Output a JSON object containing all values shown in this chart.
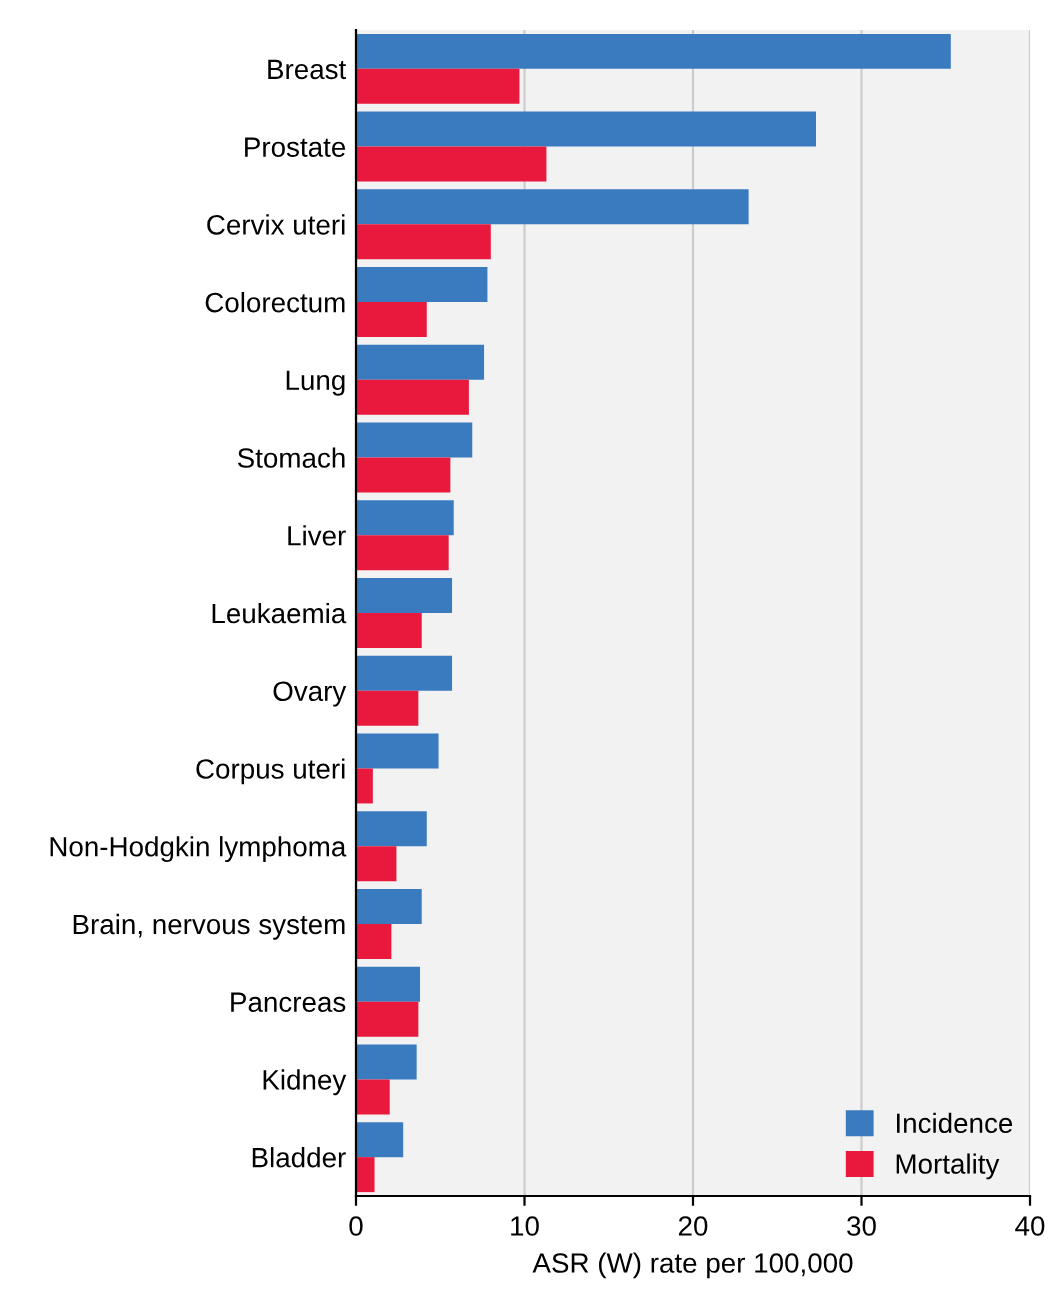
{
  "chart_data": {
    "type": "bar",
    "orientation": "horizontal",
    "xlabel": "ASR (W) rate per 100,000",
    "categories": [
      "Breast",
      "Prostate",
      "Cervix uteri",
      "Colorectum",
      "Lung",
      "Stomach",
      "Liver",
      "Leukaemia",
      "Ovary",
      "Corpus uteri",
      "Non-Hodgkin lymphoma",
      "Brain, nervous system",
      "Pancreas",
      "Kidney",
      "Bladder"
    ],
    "series": [
      {
        "name": "Incidence",
        "color": "#3a7bbf",
        "values": [
          35.3,
          27.3,
          23.3,
          7.8,
          7.6,
          6.9,
          5.8,
          5.7,
          5.7,
          4.9,
          4.2,
          3.9,
          3.8,
          3.6,
          2.8
        ]
      },
      {
        "name": "Mortality",
        "color": "#e8193c",
        "values": [
          9.7,
          11.3,
          8.0,
          4.2,
          6.7,
          5.6,
          5.5,
          3.9,
          3.7,
          1.0,
          2.4,
          2.1,
          3.7,
          2.0,
          1.1
        ]
      }
    ],
    "xlim": [
      0,
      40
    ],
    "xticks": [
      0,
      10,
      20,
      30,
      40
    ],
    "grid": "x",
    "legend": "bottom right"
  }
}
